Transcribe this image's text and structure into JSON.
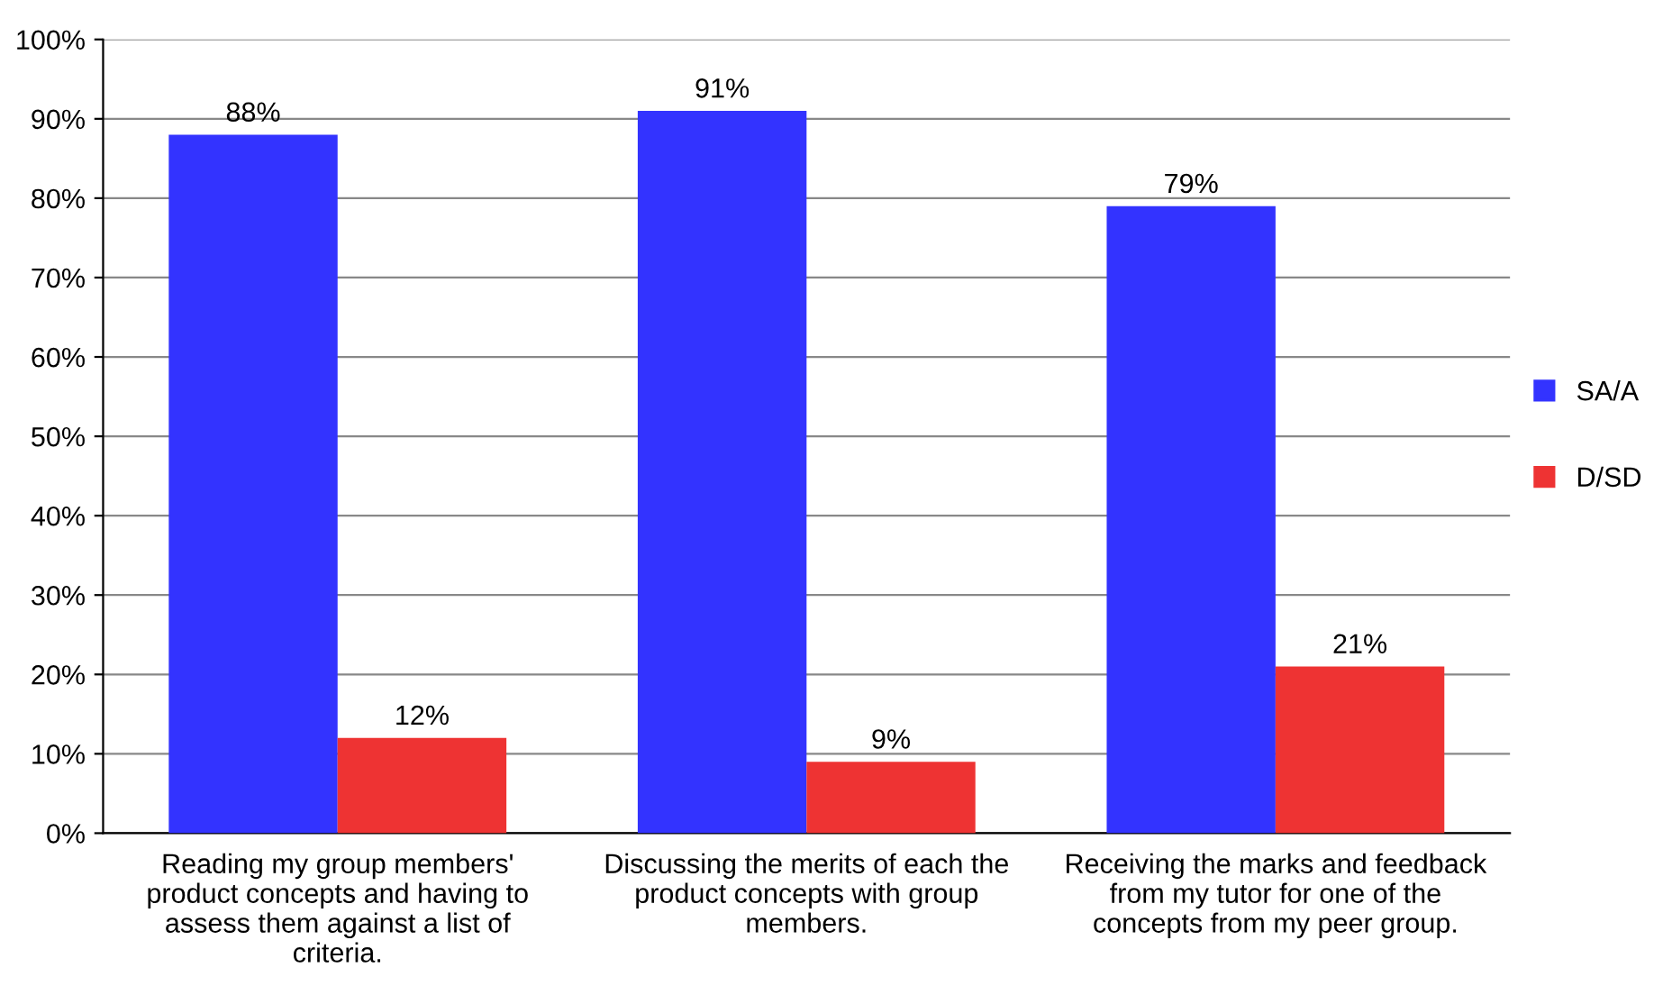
{
  "chart_data": {
    "type": "bar",
    "categories": [
      "Reading my group members'\nproduct concepts and having to\nassess them against a list of\ncriteria.",
      "Discussing the merits of each the\nproduct concepts with group\nmembers.",
      "Receiving the marks and feedback\nfrom my tutor for one of the\nconcepts from my peer group."
    ],
    "series": [
      {
        "name": "SA/A",
        "color": "#3333ff",
        "values": [
          88,
          91,
          79
        ],
        "value_labels": [
          "88%",
          "91%",
          "79%"
        ]
      },
      {
        "name": "D/SD",
        "color": "#ee3333",
        "values": [
          12,
          9,
          21
        ],
        "value_labels": [
          "12%",
          "9%",
          "21%"
        ]
      }
    ],
    "ylim": [
      0,
      100
    ],
    "yticks": [
      {
        "value": 0,
        "label": "0%"
      },
      {
        "value": 10,
        "label": "10%"
      },
      {
        "value": 20,
        "label": "20%"
      },
      {
        "value": 30,
        "label": "30%"
      },
      {
        "value": 40,
        "label": "40%"
      },
      {
        "value": 50,
        "label": "50%"
      },
      {
        "value": 60,
        "label": "60%"
      },
      {
        "value": 70,
        "label": "70%"
      },
      {
        "value": 80,
        "label": "80%"
      },
      {
        "value": 90,
        "label": "90%"
      },
      {
        "value": 100,
        "label": "100%"
      }
    ],
    "grid": "y",
    "legend": "right"
  }
}
